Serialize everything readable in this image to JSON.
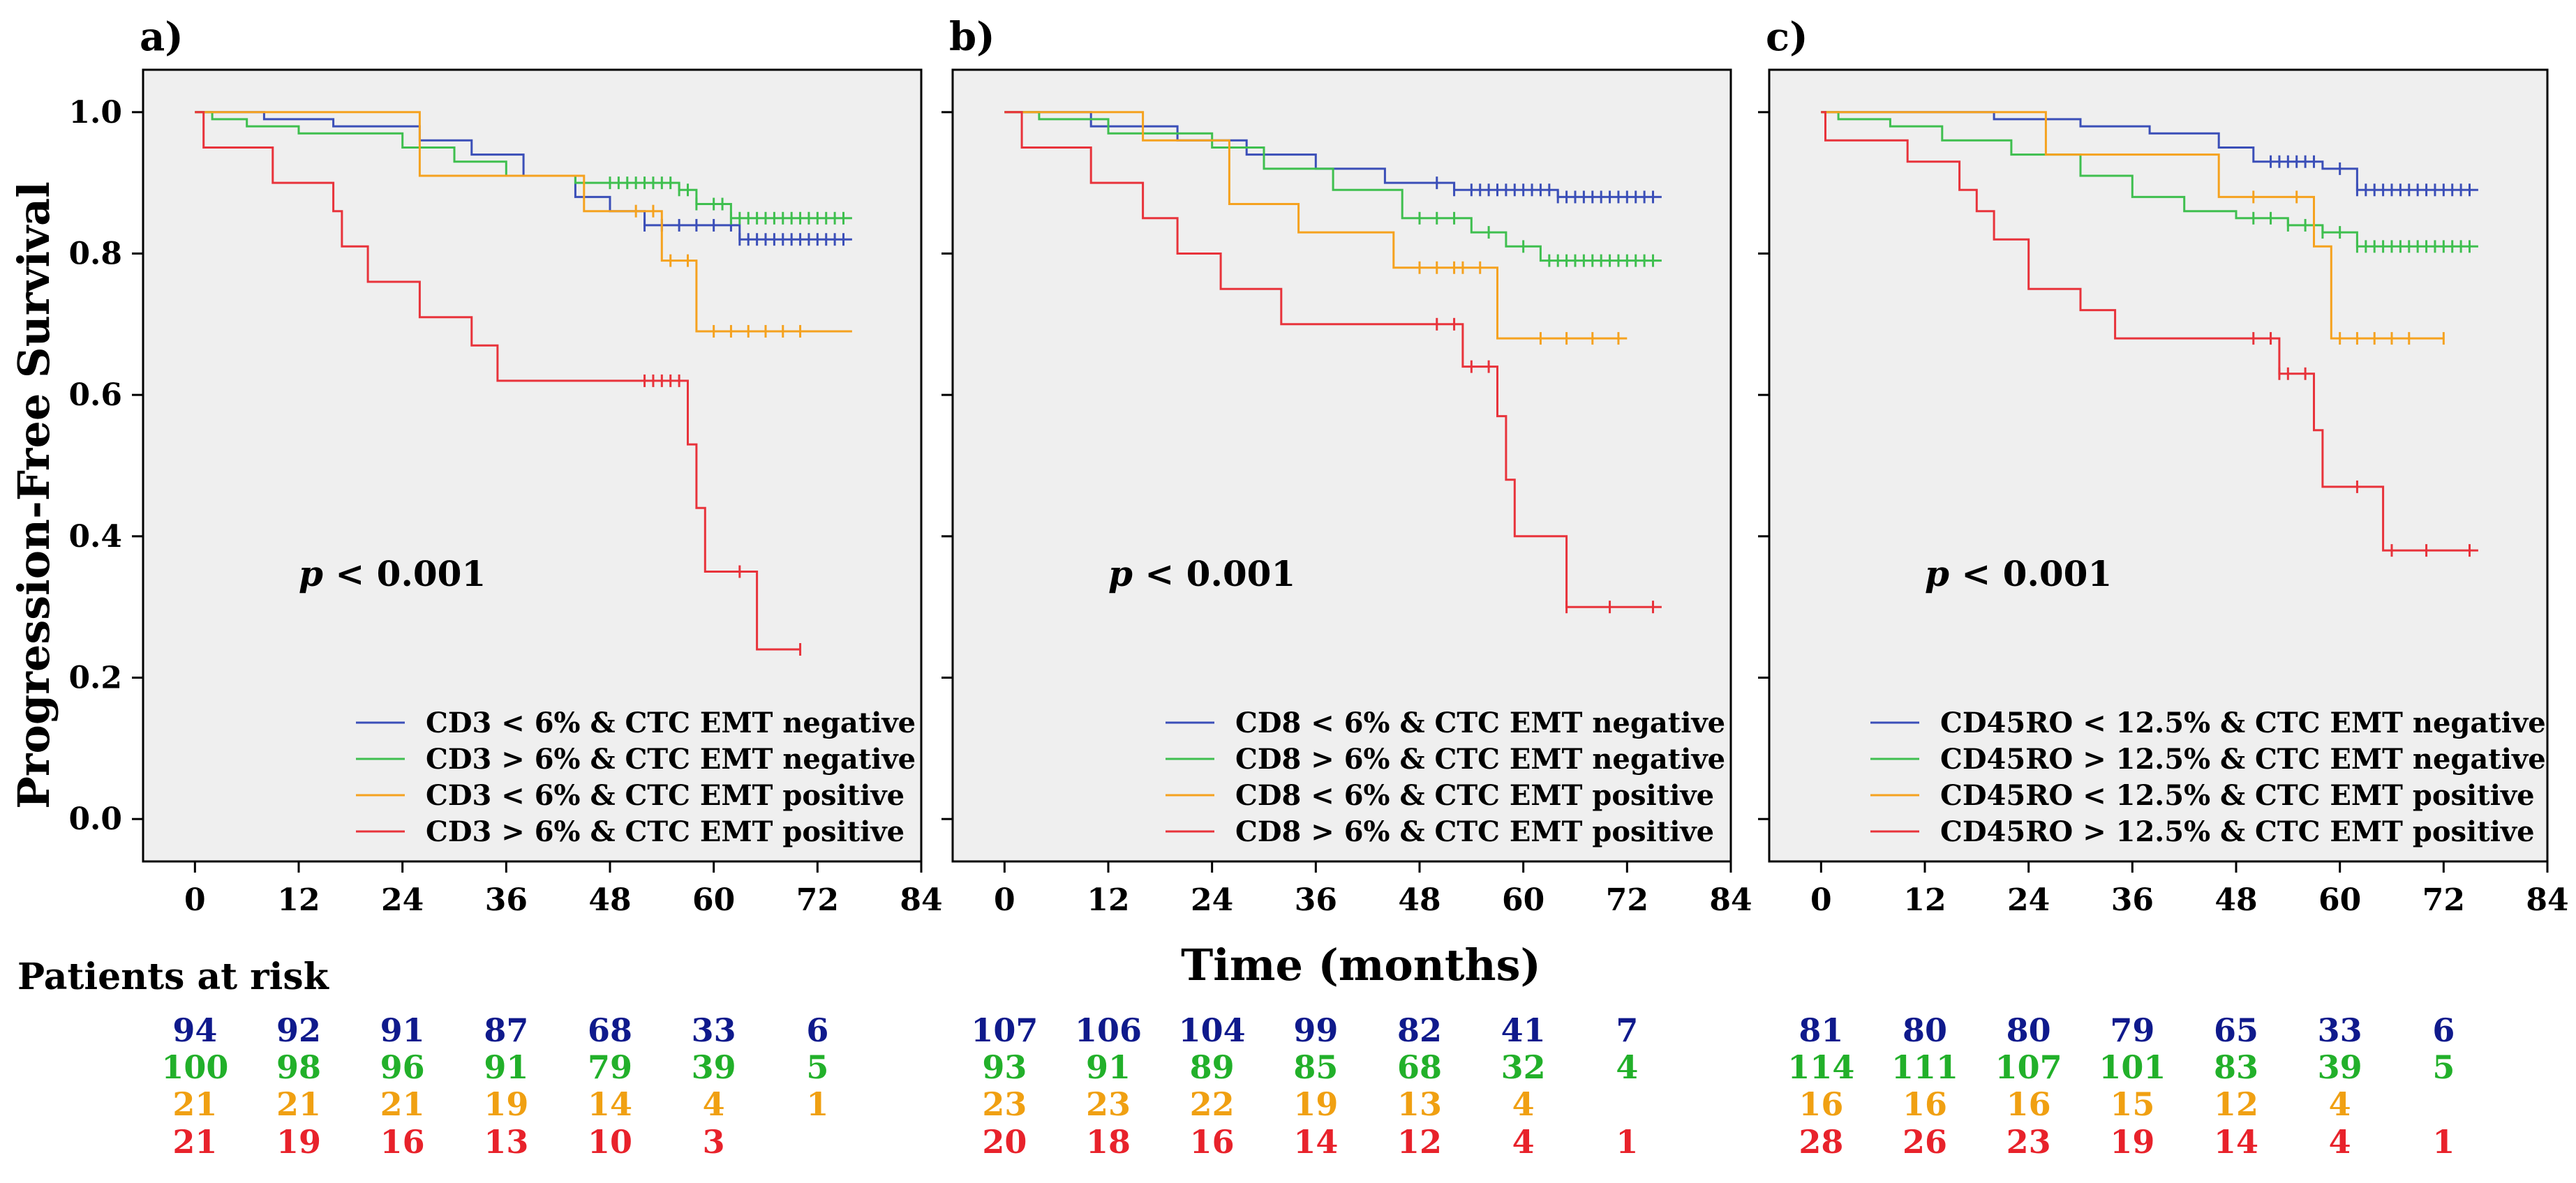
{
  "chart_data": [
    {
      "type": "line",
      "panel_label": "a)",
      "xlabel": "Time (months)",
      "ylabel": "Progression-Free Survival",
      "xlim": [
        -6,
        84
      ],
      "ylim": [
        -0.06,
        1.06
      ],
      "xticks": [
        0,
        12,
        24,
        36,
        48,
        60,
        72,
        84
      ],
      "yticks": [
        0.0,
        0.2,
        0.4,
        0.6,
        0.8,
        1.0
      ],
      "ytick_labels": [
        "0.0",
        "0.2",
        "0.4",
        "0.6",
        "0.8",
        "1.0"
      ],
      "annotation": {
        "italic": "p",
        "text": " < 0.001"
      },
      "legend_position": "bottom-right",
      "series": [
        {
          "name": "CD3 < 6% & CTC EMT negative",
          "color": "#3b4fb8",
          "steps": [
            [
              0,
              1.0
            ],
            [
              8,
              0.99
            ],
            [
              16,
              0.98
            ],
            [
              26,
              0.96
            ],
            [
              32,
              0.94
            ],
            [
              38,
              0.91
            ],
            [
              44,
              0.88
            ],
            [
              48,
              0.86
            ],
            [
              52,
              0.84
            ],
            [
              63,
              0.82
            ],
            [
              76,
              0.82
            ]
          ],
          "censored": [
            52,
            54,
            56,
            58,
            60,
            62,
            63,
            64,
            65,
            66,
            67,
            68,
            69,
            70,
            71,
            72,
            73,
            74,
            75
          ]
        },
        {
          "name": "CD3 > 6% & CTC EMT negative",
          "color": "#3fbf4f",
          "steps": [
            [
              0,
              1.0
            ],
            [
              2,
              0.99
            ],
            [
              6,
              0.98
            ],
            [
              12,
              0.97
            ],
            [
              24,
              0.95
            ],
            [
              30,
              0.93
            ],
            [
              36,
              0.91
            ],
            [
              44,
              0.9
            ],
            [
              56,
              0.89
            ],
            [
              58,
              0.87
            ],
            [
              62,
              0.85
            ],
            [
              76,
              0.85
            ]
          ],
          "censored": [
            48,
            49,
            50,
            51,
            52,
            53,
            54,
            55,
            56,
            57,
            58,
            60,
            61,
            62,
            63,
            64,
            65,
            66,
            67,
            68,
            69,
            70,
            71,
            72,
            73,
            74,
            75
          ]
        },
        {
          "name": "CD3 < 6% & CTC EMT positive",
          "color": "#f5a21f",
          "steps": [
            [
              0,
              1.0
            ],
            [
              26,
              0.91
            ],
            [
              45,
              0.86
            ],
            [
              54,
              0.79
            ],
            [
              58,
              0.69
            ],
            [
              76,
              0.69
            ]
          ],
          "censored": [
            51,
            53,
            55,
            57,
            60,
            62,
            64,
            66,
            68,
            70
          ]
        },
        {
          "name": "CD3 > 6% & CTC EMT positive",
          "color": "#e8333b",
          "steps": [
            [
              0,
              1.0
            ],
            [
              1,
              0.95
            ],
            [
              9,
              0.9
            ],
            [
              16,
              0.86
            ],
            [
              17,
              0.81
            ],
            [
              20,
              0.76
            ],
            [
              26,
              0.71
            ],
            [
              32,
              0.67
            ],
            [
              35,
              0.62
            ],
            [
              57,
              0.53
            ],
            [
              58,
              0.44
            ],
            [
              59,
              0.35
            ],
            [
              65,
              0.24
            ],
            [
              70,
              0.24
            ]
          ],
          "censored": [
            52,
            53,
            54,
            55,
            56,
            63,
            70
          ]
        }
      ],
      "risk_counts": [
        [
          94,
          92,
          91,
          87,
          68,
          33,
          6
        ],
        [
          100,
          98,
          96,
          91,
          79,
          39,
          5
        ],
        [
          21,
          21,
          21,
          19,
          14,
          4,
          1
        ],
        [
          21,
          19,
          16,
          13,
          10,
          3,
          null
        ]
      ]
    },
    {
      "type": "line",
      "panel_label": "b)",
      "xlabel": "Time (months)",
      "ylabel": "Progression-Free Survival",
      "xlim": [
        -6,
        84
      ],
      "ylim": [
        -0.06,
        1.06
      ],
      "xticks": [
        0,
        12,
        24,
        36,
        48,
        60,
        72,
        84
      ],
      "yticks": [
        0.0,
        0.2,
        0.4,
        0.6,
        0.8,
        1.0
      ],
      "ytick_labels": [
        "0.0",
        "0.2",
        "0.4",
        "0.6",
        "0.8",
        "1.0"
      ],
      "annotation": {
        "italic": "p",
        "text": " < 0.001"
      },
      "legend_position": "bottom-right",
      "series": [
        {
          "name": "CD8 < 6% & CTC EMT negative",
          "color": "#3b4fb8",
          "steps": [
            [
              0,
              1.0
            ],
            [
              10,
              0.98
            ],
            [
              20,
              0.96
            ],
            [
              28,
              0.94
            ],
            [
              36,
              0.92
            ],
            [
              44,
              0.9
            ],
            [
              52,
              0.89
            ],
            [
              64,
              0.88
            ],
            [
              76,
              0.88
            ]
          ],
          "censored": [
            50,
            52,
            54,
            55,
            56,
            57,
            58,
            59,
            60,
            61,
            62,
            63,
            64,
            65,
            66,
            67,
            68,
            69,
            70,
            71,
            72,
            73,
            74,
            75
          ]
        },
        {
          "name": "CD8 > 6% & CTC EMT negative",
          "color": "#3fbf4f",
          "steps": [
            [
              0,
              1.0
            ],
            [
              4,
              0.99
            ],
            [
              12,
              0.97
            ],
            [
              24,
              0.95
            ],
            [
              30,
              0.92
            ],
            [
              38,
              0.89
            ],
            [
              46,
              0.85
            ],
            [
              54,
              0.83
            ],
            [
              58,
              0.81
            ],
            [
              62,
              0.79
            ],
            [
              76,
              0.79
            ]
          ],
          "censored": [
            48,
            50,
            52,
            56,
            60,
            63,
            64,
            65,
            66,
            67,
            68,
            69,
            70,
            71,
            72,
            73,
            74,
            75
          ]
        },
        {
          "name": "CD8 < 6% & CTC EMT positive",
          "color": "#f5a21f",
          "steps": [
            [
              0,
              1.0
            ],
            [
              16,
              0.96
            ],
            [
              26,
              0.87
            ],
            [
              34,
              0.83
            ],
            [
              45,
              0.78
            ],
            [
              57,
              0.68
            ],
            [
              72,
              0.68
            ]
          ],
          "censored": [
            48,
            50,
            52,
            53,
            55,
            62,
            65,
            68,
            71
          ]
        },
        {
          "name": "CD8 > 6% & CTC EMT positive",
          "color": "#e8333b",
          "steps": [
            [
              0,
              1.0
            ],
            [
              2,
              0.95
            ],
            [
              10,
              0.9
            ],
            [
              16,
              0.85
            ],
            [
              20,
              0.8
            ],
            [
              25,
              0.75
            ],
            [
              32,
              0.7
            ],
            [
              53,
              0.64
            ],
            [
              57,
              0.57
            ],
            [
              58,
              0.48
            ],
            [
              59,
              0.4
            ],
            [
              65,
              0.3
            ],
            [
              76,
              0.3
            ]
          ],
          "censored": [
            50,
            52,
            54,
            56,
            65,
            70,
            75
          ]
        }
      ],
      "risk_counts": [
        [
          107,
          106,
          104,
          99,
          82,
          41,
          7
        ],
        [
          93,
          91,
          89,
          85,
          68,
          32,
          4
        ],
        [
          23,
          23,
          22,
          19,
          13,
          4,
          null
        ],
        [
          20,
          18,
          16,
          14,
          12,
          4,
          1
        ]
      ]
    },
    {
      "type": "line",
      "panel_label": "c)",
      "xlabel": "Time (months)",
      "ylabel": "Progression-Free Survival",
      "xlim": [
        -6,
        84
      ],
      "ylim": [
        -0.06,
        1.06
      ],
      "xticks": [
        0,
        12,
        24,
        36,
        48,
        60,
        72,
        84
      ],
      "yticks": [
        0.0,
        0.2,
        0.4,
        0.6,
        0.8,
        1.0
      ],
      "ytick_labels": [
        "0.0",
        "0.2",
        "0.4",
        "0.6",
        "0.8",
        "1.0"
      ],
      "annotation": {
        "italic": "p",
        "text": " < 0.001"
      },
      "legend_position": "bottom-right",
      "series": [
        {
          "name": "CD45RO < 12.5% & CTC EMT negative",
          "color": "#3b4fb8",
          "steps": [
            [
              0,
              1.0
            ],
            [
              20,
              0.99
            ],
            [
              30,
              0.98
            ],
            [
              38,
              0.97
            ],
            [
              46,
              0.95
            ],
            [
              50,
              0.93
            ],
            [
              58,
              0.92
            ],
            [
              62,
              0.89
            ],
            [
              76,
              0.89
            ]
          ],
          "censored": [
            52,
            53,
            54,
            55,
            56,
            57,
            60,
            62,
            63,
            64,
            65,
            66,
            67,
            68,
            69,
            70,
            71,
            72,
            73,
            74,
            75
          ]
        },
        {
          "name": "CD45RO > 12.5% & CTC EMT negative",
          "color": "#3fbf4f",
          "steps": [
            [
              0,
              1.0
            ],
            [
              2,
              0.99
            ],
            [
              8,
              0.98
            ],
            [
              14,
              0.96
            ],
            [
              22,
              0.94
            ],
            [
              30,
              0.91
            ],
            [
              36,
              0.88
            ],
            [
              42,
              0.86
            ],
            [
              48,
              0.85
            ],
            [
              54,
              0.84
            ],
            [
              58,
              0.83
            ],
            [
              62,
              0.81
            ],
            [
              76,
              0.81
            ]
          ],
          "censored": [
            50,
            52,
            54,
            56,
            58,
            60,
            62,
            63,
            64,
            65,
            66,
            67,
            68,
            69,
            70,
            71,
            72,
            73,
            74,
            75
          ]
        },
        {
          "name": "CD45RO < 12.5% & CTC EMT positive",
          "color": "#f5a21f",
          "steps": [
            [
              0,
              1.0
            ],
            [
              26,
              0.94
            ],
            [
              46,
              0.88
            ],
            [
              57,
              0.81
            ],
            [
              59,
              0.68
            ],
            [
              72,
              0.68
            ]
          ],
          "censored": [
            50,
            55,
            60,
            62,
            64,
            66,
            68,
            72
          ]
        },
        {
          "name": "CD45RO > 12.5% & CTC EMT positive",
          "color": "#e8333b",
          "steps": [
            [
              0,
              1.0
            ],
            [
              0.5,
              0.96
            ],
            [
              10,
              0.93
            ],
            [
              16,
              0.89
            ],
            [
              18,
              0.86
            ],
            [
              20,
              0.82
            ],
            [
              24,
              0.75
            ],
            [
              30,
              0.72
            ],
            [
              34,
              0.68
            ],
            [
              53,
              0.63
            ],
            [
              57,
              0.55
            ],
            [
              58,
              0.47
            ],
            [
              65,
              0.38
            ],
            [
              76,
              0.38
            ]
          ],
          "censored": [
            50,
            52,
            53,
            54,
            56,
            62,
            66,
            70,
            75
          ]
        }
      ],
      "risk_counts": [
        [
          81,
          80,
          80,
          79,
          65,
          33,
          6
        ],
        [
          114,
          111,
          107,
          101,
          83,
          39,
          5
        ],
        [
          16,
          16,
          16,
          15,
          12,
          4,
          null
        ],
        [
          28,
          26,
          23,
          19,
          14,
          4,
          1
        ]
      ]
    }
  ],
  "risk_table": {
    "title": "Patients at risk",
    "row_colors": [
      "#0f1a8c",
      "#22b02a",
      "#f0a012",
      "#e8222b"
    ]
  }
}
